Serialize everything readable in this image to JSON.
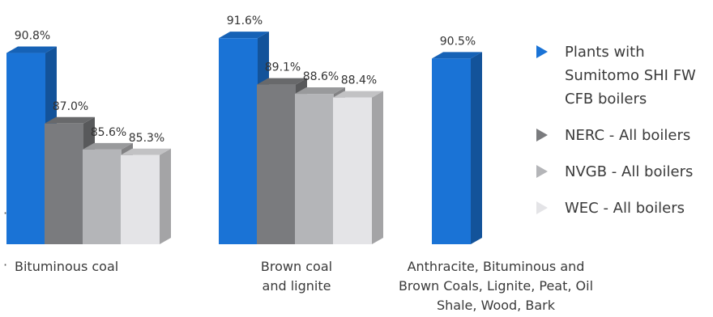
{
  "chart_data": {
    "type": "bar",
    "categories": [
      "Bituminous coal",
      "Brown coal\nand lignite",
      "Anthracite, Bituminous and\nBrown Coals, Lignite, Peat, Oil\nShale, Wood, Bark"
    ],
    "series": [
      {
        "name": "Plants with Sumitomo SHI FW CFB boilers",
        "values": [
          90.8,
          91.6,
          90.5
        ],
        "labels": [
          "90.8%",
          "91.6%",
          "90.5%"
        ],
        "color": "#1a73d6"
      },
      {
        "name": "NERC - All boilers",
        "values": [
          87.0,
          89.1,
          null
        ],
        "labels": [
          "87.0%",
          "89.1%",
          null
        ],
        "color": "#7a7b7e"
      },
      {
        "name": "NVGB - All boilers",
        "values": [
          85.6,
          88.6,
          null
        ],
        "labels": [
          "85.6%",
          "88.6%",
          null
        ],
        "color": "#b4b5b8"
      },
      {
        "name": "WEC - All boilers",
        "values": [
          85.3,
          88.4,
          null
        ],
        "labels": [
          "85.3%",
          "88.4%",
          null
        ],
        "color": "#e4e4e7"
      }
    ],
    "title": "",
    "xlabel": "",
    "ylabel": "",
    "ylim": [
      80.5,
      92
    ],
    "grid": false,
    "legend": "right",
    "style": "3d-bars"
  },
  "legend": {
    "items": [
      {
        "label": "Plants with Sumitomo SHI FW CFB boilers",
        "color": "#1a73d6"
      },
      {
        "label": "NERC - All boilers",
        "color": "#7a7b7e"
      },
      {
        "label": "NVGB - All boilers",
        "color": "#b4b5b8"
      },
      {
        "label": "WEC - All boilers",
        "color": "#e4e4e7"
      }
    ]
  },
  "categories": {
    "c0": "Bituminous coal",
    "c1": "Brown coal\nand lignite",
    "c2": "Anthracite, Bituminous and\nBrown Coals, Lignite, Peat, Oil\nShale, Wood, Bark"
  }
}
